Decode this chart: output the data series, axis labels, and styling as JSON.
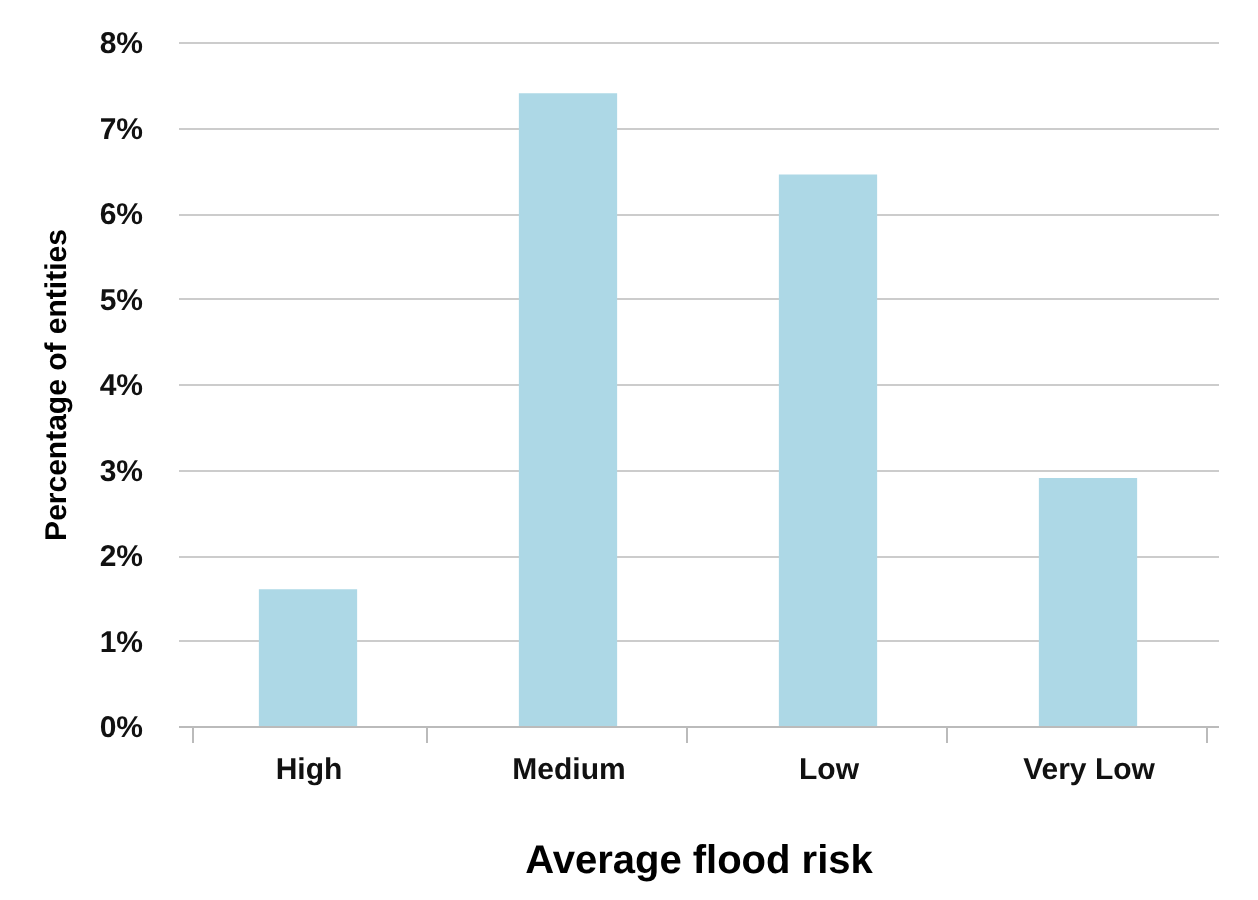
{
  "chart_data": {
    "type": "bar",
    "xlabel": "Average flood risk",
    "ylabel": "Percentage of entities",
    "categories": [
      "High",
      "Medium",
      "Low",
      "Very Low"
    ],
    "values": [
      1.6,
      7.4,
      6.45,
      2.9
    ],
    "color": "#add8e6",
    "ylim": [
      0,
      8
    ],
    "yticks": [
      {
        "value": 0,
        "label": "0%"
      },
      {
        "value": 1,
        "label": "1%"
      },
      {
        "value": 2,
        "label": "2%"
      },
      {
        "value": 3,
        "label": "3%"
      },
      {
        "value": 4,
        "label": "4%"
      },
      {
        "value": 5,
        "label": "5%"
      },
      {
        "value": 6,
        "label": "6%"
      },
      {
        "value": 7,
        "label": "7%"
      },
      {
        "value": 8,
        "label": "8%"
      }
    ],
    "grid": "y"
  }
}
